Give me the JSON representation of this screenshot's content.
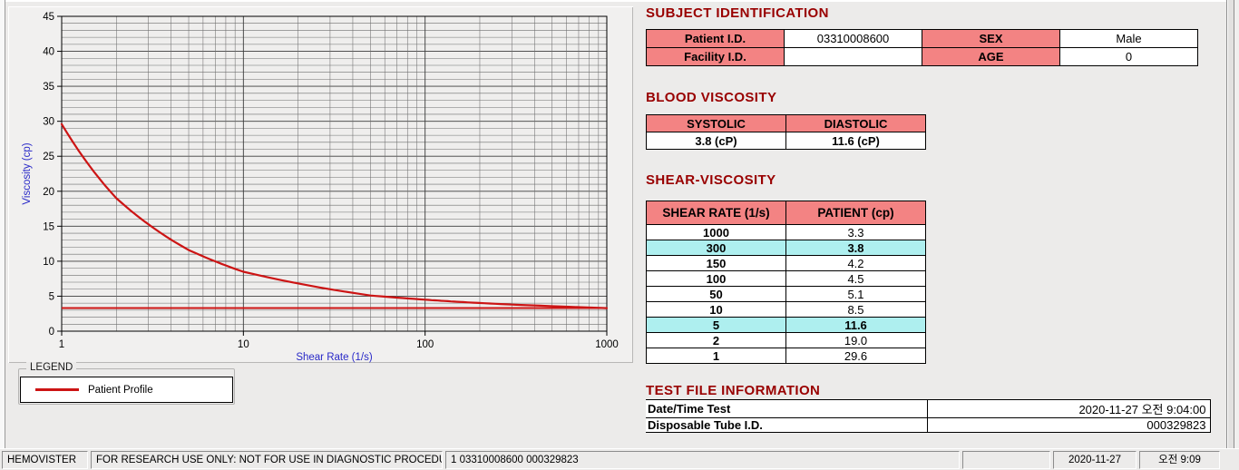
{
  "colors": {
    "accent_red": "#cc1414",
    "title_red": "#990000",
    "header_pink": "#f38383",
    "highlight_cyan": "#aeefef",
    "axis_blue": "#2929c8",
    "panel_bg": "#f1f0ef"
  },
  "legend": {
    "title": "LEGEND",
    "series_label": "Patient Profile"
  },
  "sections": {
    "subject": {
      "title": "SUBJECT IDENTIFICATION",
      "cells": [
        {
          "label": "Patient I.D.",
          "value": "03310008600"
        },
        {
          "label": "SEX",
          "value": "Male"
        },
        {
          "label": "Facility I.D.",
          "value": ""
        },
        {
          "label": "AGE",
          "value": "0"
        }
      ]
    },
    "blood": {
      "title": "BLOOD VISCOSITY",
      "headers": [
        "SYSTOLIC",
        "DIASTOLIC"
      ],
      "values": [
        "3.8 (cP)",
        "11.6 (cP)"
      ]
    },
    "shear": {
      "title": "SHEAR-VISCOSITY",
      "headers": [
        "SHEAR RATE (1/s)",
        "PATIENT (cp)"
      ],
      "rows": [
        {
          "rate": "1000",
          "value": "3.3",
          "highlight": false
        },
        {
          "rate": "300",
          "value": "3.8",
          "highlight": true
        },
        {
          "rate": "150",
          "value": "4.2",
          "highlight": false
        },
        {
          "rate": "100",
          "value": "4.5",
          "highlight": false
        },
        {
          "rate": "50",
          "value": "5.1",
          "highlight": false
        },
        {
          "rate": "10",
          "value": "8.5",
          "highlight": false
        },
        {
          "rate": "5",
          "value": "11.6",
          "highlight": true
        },
        {
          "rate": "2",
          "value": "19.0",
          "highlight": false
        },
        {
          "rate": "1",
          "value": "29.6",
          "highlight": false
        }
      ]
    },
    "testfile": {
      "title": "TEST FILE INFORMATION",
      "rows": [
        {
          "label": "Date/Time Test",
          "value": "2020-11-27   오전 9:04:00"
        },
        {
          "label": "Disposable Tube I.D.",
          "value": "000329823"
        }
      ]
    }
  },
  "statusbar": {
    "app_name": "HEMOVISTER",
    "notice": "FOR RESEARCH USE ONLY: NOT FOR USE IN DIAGNOSTIC PROCEDURES",
    "record_info": "1  03310008600  000329823",
    "blank": "",
    "date": "2020-11-27",
    "time": "오전 9:09"
  },
  "chart_data": {
    "type": "line",
    "title": "",
    "xlabel": "Shear Rate (1/s)",
    "ylabel": "Viscosity (cp)",
    "x_scale": "log",
    "xlim": [
      1,
      1000
    ],
    "ylim": [
      0,
      45
    ],
    "x_ticks": [
      1,
      10,
      100,
      1000
    ],
    "y_tick_step": 5,
    "y_minor_step": 1,
    "grid": true,
    "legend_position": "below-left",
    "series": [
      {
        "name": "Patient Profile",
        "color": "#cc1414",
        "x": [
          1,
          2,
          5,
          10,
          50,
          100,
          150,
          300,
          1000
        ],
        "y": [
          29.6,
          19.0,
          11.6,
          8.5,
          5.1,
          4.5,
          4.2,
          3.8,
          3.3
        ]
      }
    ],
    "ref_line_y": 3.3
  }
}
